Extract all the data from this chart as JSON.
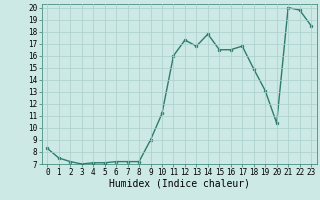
{
  "xlabel": "Humidex (Indice chaleur)",
  "ylabel": "",
  "x": [
    0,
    1,
    2,
    3,
    4,
    5,
    6,
    7,
    8,
    9,
    10,
    11,
    12,
    13,
    14,
    15,
    16,
    17,
    18,
    19,
    20,
    21,
    22,
    23
  ],
  "y": [
    8.3,
    7.5,
    7.2,
    7.0,
    7.1,
    7.1,
    7.2,
    7.2,
    7.2,
    9.0,
    11.2,
    16.0,
    17.3,
    16.8,
    17.8,
    16.5,
    16.5,
    16.8,
    14.9,
    13.1,
    10.4,
    20.0,
    19.8,
    18.5
  ],
  "line_color": "#2d7d6e",
  "marker": "o",
  "marker_size": 2,
  "line_width": 1.0,
  "xlim": [
    -0.5,
    23.5
  ],
  "ylim": [
    7,
    20
  ],
  "yticks": [
    7,
    8,
    9,
    10,
    11,
    12,
    13,
    14,
    15,
    16,
    17,
    18,
    19,
    20
  ],
  "xticks": [
    0,
    1,
    2,
    3,
    4,
    5,
    6,
    7,
    8,
    9,
    10,
    11,
    12,
    13,
    14,
    15,
    16,
    17,
    18,
    19,
    20,
    21,
    22,
    23
  ],
  "bg_color": "#cce9e5",
  "grid_color": "#aacfcb",
  "xlabel_fontsize": 7,
  "tick_fontsize": 5.5
}
